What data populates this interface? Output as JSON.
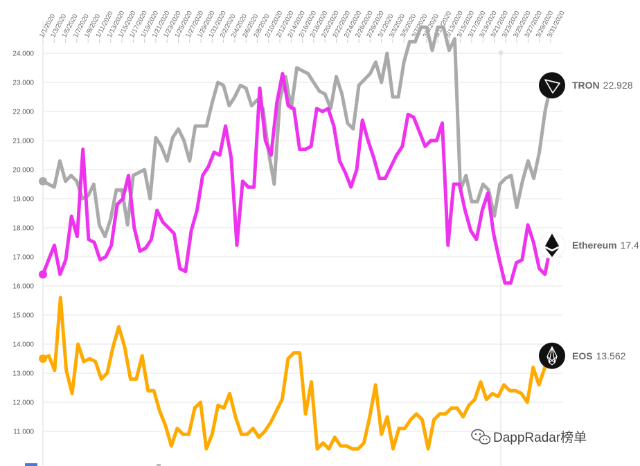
{
  "chart_data": {
    "type": "line",
    "title": "",
    "xlabel": "",
    "ylabel": "",
    "ylim": [
      10.6,
      24.5
    ],
    "grid": true,
    "x_tick_labels": [
      "1/1/2020",
      "1/3/2020",
      "1/5/2020",
      "1/7/2020",
      "1/9/2020",
      "1/11/2020",
      "1/13/2020",
      "1/15/2020",
      "1/17/2020",
      "1/19/2020",
      "1/21/2020",
      "1/23/2020",
      "1/25/2020",
      "1/27/2020",
      "1/29/2020",
      "1/31/2020",
      "2/2/2020",
      "2/4/2020",
      "2/6/2020",
      "2/8/2020",
      "2/10/2020",
      "2/12/2020",
      "2/14/2020",
      "2/16/2020",
      "2/18/2020",
      "2/20/2020",
      "2/22/2020",
      "2/24/2020",
      "2/26/2020",
      "2/28/2020",
      "3/1/2020",
      "3/3/2020",
      "3/5/2020",
      "3/7/2020",
      "3/9/2020",
      "3/11/2020",
      "3/13/2020",
      "3/15/2020",
      "3/17/2020",
      "3/19/2020",
      "3/21/2020",
      "3/23/2020",
      "3/25/2020",
      "3/27/2020",
      "3/29/2020",
      "3/31/2020"
    ],
    "y_tick_labels": [
      "11.000",
      "12.000",
      "13.000",
      "14.000",
      "15.000",
      "16.000",
      "17.000",
      "18.000",
      "19.000",
      "20.000",
      "21.000",
      "22.000",
      "23.000",
      "24.000"
    ],
    "y_ticks": [
      11,
      12,
      13,
      14,
      15,
      16,
      17,
      18,
      19,
      20,
      21,
      22,
      23,
      24
    ],
    "series": [
      {
        "name": "TRON",
        "last_value": "22.928",
        "color": "#aaaaaa",
        "values": [
          19.6,
          19.5,
          19.4,
          20.3,
          19.6,
          19.8,
          19.6,
          19.0,
          19.1,
          19.5,
          18.1,
          17.7,
          18.3,
          19.3,
          19.3,
          18.1,
          19.8,
          19.9,
          20.0,
          19.0,
          21.1,
          20.8,
          20.3,
          21.1,
          21.4,
          21.0,
          20.3,
          21.5,
          21.5,
          21.5,
          22.3,
          23.0,
          22.9,
          22.2,
          22.5,
          22.9,
          22.8,
          22.2,
          22.4,
          22.1,
          20.6,
          19.5,
          22.4,
          23.2,
          22.1,
          23.5,
          23.4,
          23.3,
          23.0,
          22.7,
          22.6,
          22.1,
          23.2,
          22.6,
          21.6,
          21.4,
          22.9,
          23.1,
          23.3,
          23.7,
          23.0,
          24.0,
          22.5,
          22.5,
          23.7,
          24.4,
          24.4,
          24.9,
          24.9,
          24.1,
          24.9,
          24.9,
          24.1,
          24.5,
          19.3,
          19.8,
          18.9,
          18.9,
          19.5,
          19.3,
          18.4,
          19.5,
          19.7,
          19.8,
          18.7,
          19.6,
          20.3,
          19.7,
          20.6,
          22.0,
          22.9
        ]
      },
      {
        "name": "Ethereum",
        "last_value": "17.4",
        "color": "#ee33ee",
        "values": [
          16.4,
          16.9,
          17.4,
          16.4,
          16.9,
          18.4,
          17.7,
          20.7,
          17.6,
          17.5,
          16.9,
          17.0,
          17.4,
          18.8,
          19.0,
          19.8,
          18.0,
          17.2,
          17.3,
          17.6,
          18.6,
          18.2,
          18.0,
          17.8,
          16.6,
          16.5,
          17.9,
          18.6,
          19.8,
          20.1,
          20.6,
          20.5,
          21.5,
          20.4,
          17.4,
          19.6,
          19.4,
          19.4,
          22.8,
          21.0,
          20.5,
          22.3,
          23.3,
          22.2,
          22.1,
          20.7,
          20.7,
          20.8,
          22.1,
          22.0,
          22.1,
          21.5,
          20.3,
          19.9,
          19.4,
          20.0,
          21.7,
          21.0,
          20.4,
          19.7,
          19.7,
          20.1,
          20.5,
          20.8,
          21.9,
          21.8,
          21.3,
          20.8,
          21.0,
          21.0,
          21.6,
          17.4,
          19.5,
          19.5,
          18.6,
          17.9,
          17.6,
          18.6,
          19.2,
          17.8,
          16.9,
          16.1,
          16.1,
          16.8,
          16.9,
          18.1,
          17.5,
          16.6,
          16.4,
          17.4
        ]
      },
      {
        "name": "EOS",
        "last_value": "13.562",
        "color": "#ffaa00",
        "values": [
          13.5,
          13.6,
          13.1,
          15.6,
          13.1,
          12.3,
          14.0,
          13.4,
          13.5,
          13.4,
          12.8,
          13.0,
          13.9,
          14.6,
          13.9,
          12.8,
          12.8,
          13.6,
          12.4,
          12.4,
          11.7,
          11.2,
          10.5,
          11.1,
          10.9,
          10.9,
          11.8,
          12.0,
          10.4,
          10.9,
          11.9,
          11.8,
          12.3,
          11.5,
          10.9,
          10.9,
          11.1,
          10.8,
          11.0,
          11.3,
          11.7,
          12.1,
          13.5,
          13.7,
          13.7,
          11.6,
          12.7,
          10.4,
          10.6,
          10.4,
          10.8,
          10.5,
          10.5,
          10.4,
          10.4,
          10.6,
          11.5,
          12.6,
          10.9,
          11.5,
          10.4,
          11.1,
          11.1,
          11.4,
          11.6,
          11.4,
          10.4,
          11.4,
          11.6,
          11.6,
          11.8,
          11.8,
          11.5,
          11.9,
          12.1,
          12.7,
          12.1,
          12.3,
          12.2,
          12.6,
          12.4,
          12.4,
          12.3,
          12.0,
          13.2,
          12.6,
          13.2,
          13.6
        ]
      }
    ]
  },
  "watermark": "DappRadar榜单"
}
